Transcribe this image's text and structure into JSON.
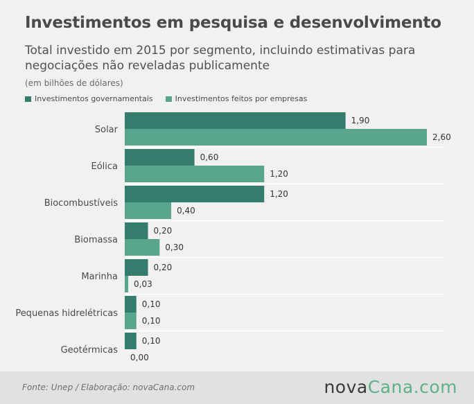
{
  "header": {
    "title": "Investimentos em pesquisa e desenvolvimento",
    "subtitle": "Total investido em 2015 por segmento, incluindo estimativas para negociações não reveladas publicamente",
    "unit_note": "(em bilhões de dólares)"
  },
  "legend": {
    "items": [
      {
        "label": "Investimentos governamentais",
        "color": "#347c6c"
      },
      {
        "label": "Investimentos feitos por empresas",
        "color": "#5aa58e"
      }
    ]
  },
  "chart_data": {
    "type": "bar",
    "orientation": "horizontal",
    "categories": [
      "Solar",
      "Eólica",
      "Biocombustíveis",
      "Biomassa",
      "Marinha",
      "Pequenas hidrelétricas",
      "Geotérmicas"
    ],
    "series": [
      {
        "name": "Investimentos governamentais",
        "color": "#347c6c",
        "values": [
          1.9,
          0.6,
          1.2,
          0.2,
          0.2,
          0.1,
          0.1
        ],
        "labels": [
          "1,90",
          "0,60",
          "1,20",
          "0,20",
          "0,20",
          "0,10",
          "0,10"
        ]
      },
      {
        "name": "Investimentos feitos por empresas",
        "color": "#5aa58e",
        "values": [
          2.6,
          1.2,
          0.4,
          0.3,
          0.03,
          0.1,
          0.0
        ],
        "labels": [
          "2,60",
          "1,20",
          "0,40",
          "0,30",
          "0,03",
          "0,10",
          "0,00"
        ]
      }
    ],
    "xlim": [
      0,
      2.6
    ],
    "legend_position": "top-left",
    "grid": false
  },
  "footer": {
    "source": "Fonte:  Unep / Elaboração:  novaCana.com",
    "logo_part1": "nova",
    "logo_part2": "Cana",
    "logo_part3": ".com"
  }
}
